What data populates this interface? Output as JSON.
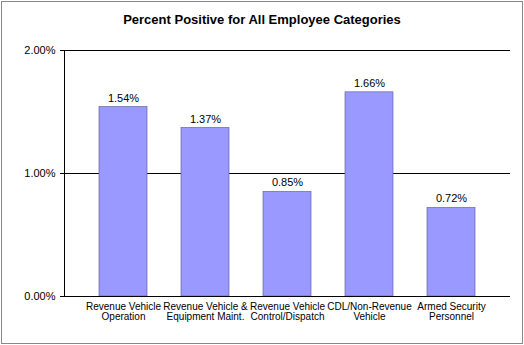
{
  "chart_data": {
    "type": "bar",
    "title": "Percent Positive for All Employee Categories",
    "categories": [
      "Revenue Vehicle Operation",
      "Revenue Vehicle & Equipment Maint.",
      "Revenue Vehicle Control/Dispatch",
      "CDL/Non-Revenue Vehicle",
      "Armed Security Personnel"
    ],
    "values": [
      1.54,
      1.37,
      0.85,
      1.66,
      0.72
    ],
    "value_labels": [
      "1.54%",
      "1.37%",
      "0.85%",
      "1.66%",
      "0.72%"
    ],
    "color": "#9999ff",
    "ylim": [
      0,
      2
    ],
    "yticks": [
      {
        "value": 0,
        "label": "0.00%"
      },
      {
        "value": 1,
        "label": "1.00%"
      },
      {
        "value": 2,
        "label": "2.00%"
      }
    ],
    "grid": true,
    "data_labels": true
  }
}
